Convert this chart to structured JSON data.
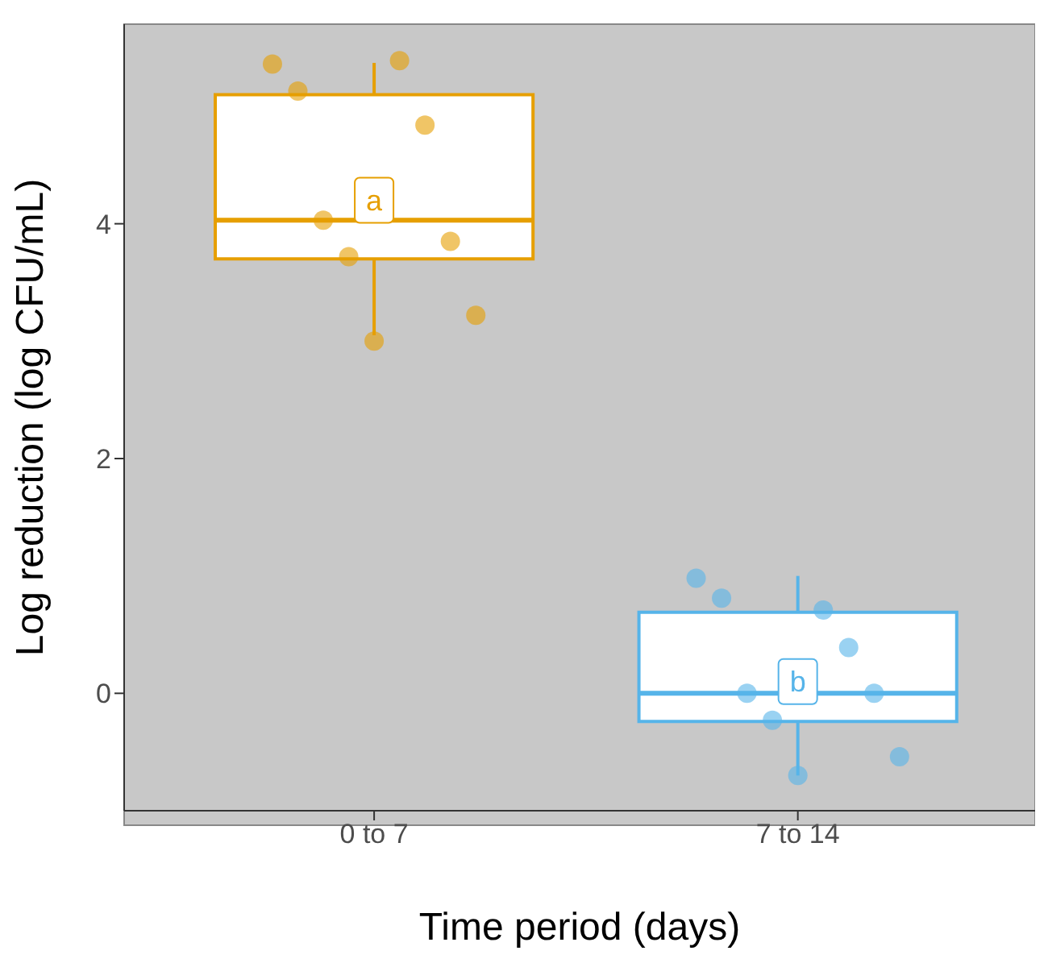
{
  "chart_data": {
    "type": "box",
    "xlabel": "Time period (days)",
    "ylabel": "Log reduction (log CFU/mL)",
    "categories": [
      "0 to 7",
      "7 to 14"
    ],
    "boxes": [
      {
        "low": 3.05,
        "q1": 3.7,
        "median": 4.03,
        "q3": 5.1,
        "high": 5.37
      },
      {
        "low": -0.7,
        "q1": -0.24,
        "median": 0,
        "q3": 0.69,
        "high": 1.0
      }
    ],
    "colors": [
      "#e69f00",
      "#56b4e9"
    ],
    "series": [
      {
        "type": "scatter",
        "color": "#e69f00",
        "x": [
          "0 to 7",
          "0 to 7",
          "0 to 7",
          "0 to 7",
          "0 to 7",
          "0 to 7",
          "0 to 7",
          "0 to 7",
          "0 to 7"
        ],
        "values": [
          5.36,
          5.39,
          5.13,
          4.84,
          4.03,
          3.85,
          3.72,
          3.22,
          3.0
        ]
      },
      {
        "type": "scatter",
        "color": "#56b4e9",
        "x": [
          "7 to 14",
          "7 to 14",
          "7 to 14",
          "7 to 14",
          "7 to 14",
          "7 to 14",
          "7 to 14",
          "7 to 14",
          "7 to 14"
        ],
        "values": [
          0.98,
          0.71,
          0.81,
          0.39,
          0,
          0,
          -0.23,
          -0.54,
          -0.7
        ]
      }
    ],
    "annotations": [
      {
        "text": "a",
        "x": "0 to 7",
        "y": 4.2
      },
      {
        "text": "b",
        "x": "7 to 14",
        "y": 0.1
      }
    ],
    "ylim": [
      -1,
      5.7
    ],
    "yticks": [
      0,
      2,
      4
    ],
    "marker": "circle"
  }
}
